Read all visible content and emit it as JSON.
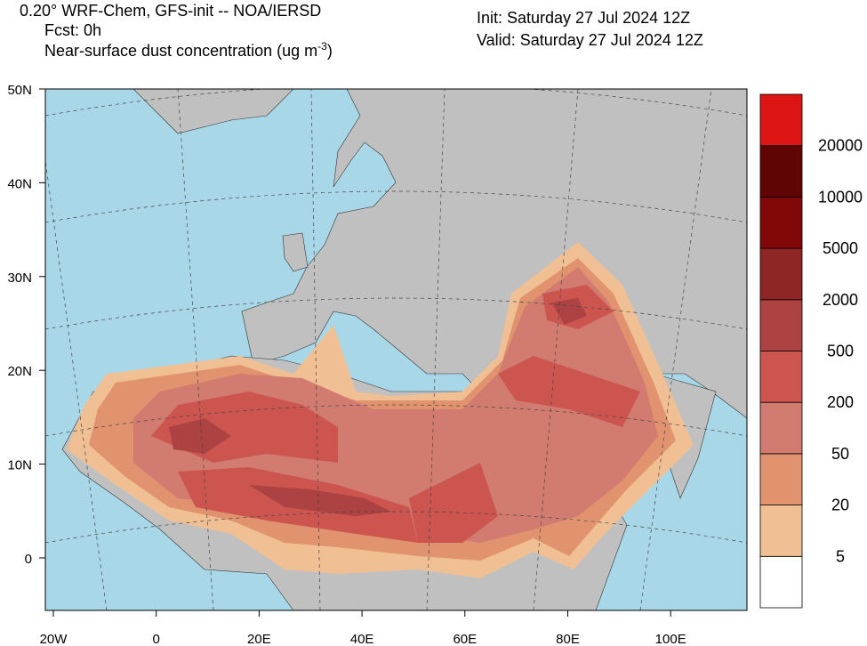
{
  "header": {
    "title": "0.20° WRF-Chem, GFS-init -- NOA/IERSD",
    "forecast": "Fcst: 0h",
    "field": "Near-surface dust concentration (ug m",
    "field_exponent": "-3",
    "field_close": ")",
    "init": "Init: Saturday 27 Jul 2024  12Z",
    "valid": "Valid: Saturday 27 Jul 2024  12Z"
  },
  "map": {
    "latitude_labels": [
      "50N",
      "40N",
      "30N",
      "20N",
      "10N",
      "0"
    ],
    "longitude_labels": [
      "20W",
      "0",
      "20E",
      "40E",
      "60E",
      "80E",
      "100E"
    ]
  },
  "colorbar": {
    "levels": [
      5,
      20,
      50,
      200,
      500,
      2000,
      5000,
      10000,
      20000
    ],
    "colors": [
      "#ffffff",
      "#f0c094",
      "#e0936e",
      "#d27b70",
      "#cc5550",
      "#ad4242",
      "#8e2626",
      "#800808",
      "#600404",
      "#dd1414"
    ]
  }
}
